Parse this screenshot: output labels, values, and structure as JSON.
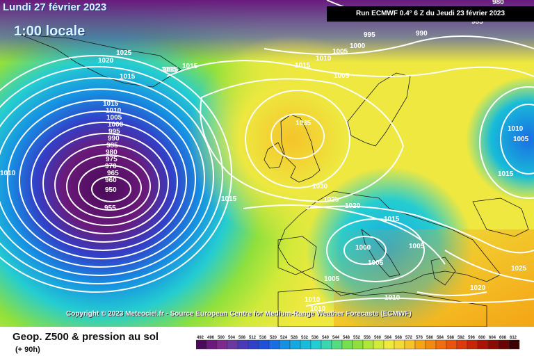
{
  "header": {
    "date": "Lundi 27 février 2023",
    "time": "1:00 locale",
    "run_info": "Run ECMWF 0.4° 6 Z du Jeudi 23 février 2023"
  },
  "map": {
    "copyright": "Copyright © 2023 Meteociel.fr - Source European Centre for Medium-Range Weather Forecasts (ECMWF)",
    "isobar_labels": [
      "980",
      "985",
      "995",
      "990",
      "1000",
      "1005",
      "1010",
      "1015",
      "1025",
      "1020",
      "1015",
      "1015",
      "1015",
      "1010",
      "1005",
      "1010",
      "1015",
      "1035",
      "1030",
      "1025",
      "1020",
      "1015",
      "1005",
      "1000",
      "1005",
      "1015",
      "1005",
      "1010",
      "1020",
      "1025",
      "1015",
      "1010",
      "1005",
      "1000",
      "995",
      "990",
      "985",
      "980",
      "975",
      "970",
      "965",
      "960",
      "950",
      "955",
      "1015",
      "1005",
      "1010",
      "1010"
    ],
    "colors": {
      "z492": "#5e0b78",
      "z516": "#2f2ab0",
      "z528": "#1590e2",
      "z540": "#25cdd0",
      "z552": "#8fe03c",
      "z564": "#f0e040",
      "z576": "#f5a415"
    }
  },
  "footer": {
    "parameter": "Geop. Z500 & pression au sol",
    "forecast_hour": "(+ 90h)"
  },
  "legend": {
    "ticks": [
      "492",
      "496",
      "500",
      "504",
      "508",
      "512",
      "516",
      "520",
      "524",
      "528",
      "532",
      "536",
      "540",
      "544",
      "548",
      "552",
      "556",
      "560",
      "564",
      "568",
      "572",
      "576",
      "580",
      "584",
      "588",
      "592",
      "596",
      "600",
      "604",
      "608",
      "612"
    ],
    "colors": [
      "#4a0a58",
      "#6a1a7a",
      "#7e2a8c",
      "#6a3aa0",
      "#4a3ab8",
      "#3140c8",
      "#2050d8",
      "#1a6ee4",
      "#1590e2",
      "#15a8e0",
      "#18bcd8",
      "#25cdd0",
      "#3ad6b0",
      "#55dc80",
      "#75df50",
      "#8fe03c",
      "#b0e63a",
      "#d2ea3a",
      "#eee840",
      "#f2d83a",
      "#f5c42a",
      "#f5a415",
      "#f28a12",
      "#ee6e10",
      "#e8540e",
      "#dc3a0c",
      "#c8240a",
      "#a81408",
      "#8a0a06",
      "#6a0404",
      "#3a0202"
    ]
  }
}
